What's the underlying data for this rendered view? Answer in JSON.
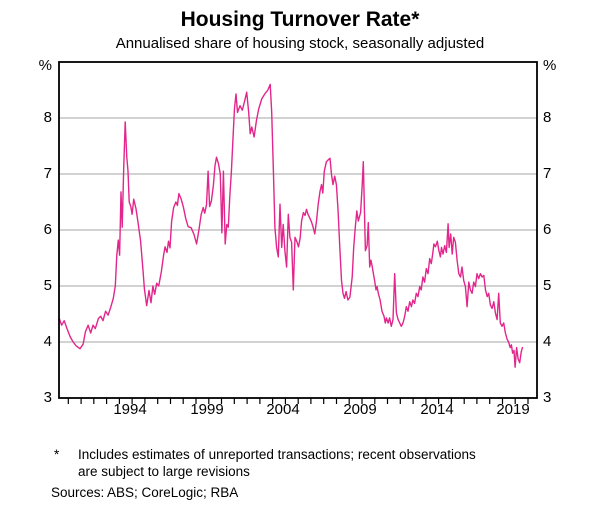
{
  "header": {
    "title": "Housing Turnover Rate*",
    "subtitle": "Annualised share of housing stock, seasonally adjusted"
  },
  "axes": {
    "unit_label": "%",
    "y_tick_labels": [
      "3",
      "4",
      "5",
      "6",
      "7",
      "8"
    ],
    "x_tick_labels": [
      "1994",
      "1999",
      "2004",
      "2009",
      "2014",
      "2019"
    ],
    "x_label_years": [
      1994,
      1999,
      2004,
      2009,
      2014,
      2019
    ]
  },
  "footnote": {
    "marker": "*",
    "lines": [
      "Includes estimates of unreported transactions; recent observations",
      "are subject to large revisions"
    ],
    "sources_label": "Sources:",
    "sources": "ABS; CoreLogic; RBA"
  },
  "colors": {
    "line": "#e2268b",
    "grid": "#a6a6a6",
    "frame": "#000000",
    "background": "#ffffff"
  },
  "chart_data": {
    "type": "line",
    "title": "Housing Turnover Rate*",
    "subtitle": "Annualised share of housing stock, seasonally adjusted",
    "ylabel": "%",
    "ylim": [
      3,
      9
    ],
    "xlim": [
      1989.38,
      2020.55
    ],
    "grid": "horizontal gridlines at 4,5,6,7,8",
    "legend": "none",
    "series": [
      {
        "name": "Housing turnover rate (annualised share of housing stock, seasonally adjusted, %)",
        "x": [
          1989.4,
          1989.55,
          1989.72,
          1989.9,
          1990.1,
          1990.3,
          1990.5,
          1990.75,
          1990.95,
          1991.1,
          1991.28,
          1991.45,
          1991.6,
          1991.75,
          1991.95,
          1992.1,
          1992.25,
          1992.42,
          1992.58,
          1992.75,
          1992.92,
          1993.05,
          1993.15,
          1993.25,
          1993.33,
          1993.42,
          1993.5,
          1993.6,
          1993.7,
          1993.8,
          1993.88,
          1993.96,
          1994.06,
          1994.15,
          1994.25,
          1994.4,
          1994.55,
          1994.7,
          1994.85,
          1994.95,
          1995.1,
          1995.25,
          1995.38,
          1995.5,
          1995.62,
          1995.75,
          1995.88,
          1996.05,
          1996.2,
          1996.3,
          1996.42,
          1996.52,
          1996.62,
          1996.72,
          1996.85,
          1997.0,
          1997.1,
          1997.2,
          1997.35,
          1997.5,
          1997.65,
          1997.8,
          1998.0,
          1998.18,
          1998.35,
          1998.5,
          1998.65,
          1998.78,
          1998.88,
          1999.0,
          1999.1,
          1999.2,
          1999.32,
          1999.45,
          1999.55,
          1999.65,
          1999.78,
          1999.9,
          2000.0,
          2000.1,
          2000.22,
          2000.32,
          2000.42,
          2000.52,
          2000.62,
          2000.72,
          2000.82,
          2000.92,
          2001.02,
          2001.18,
          2001.33,
          2001.48,
          2001.62,
          2001.75,
          2001.85,
          2001.95,
          2002.1,
          2002.25,
          2002.4,
          2002.6,
          2002.8,
          2003.0,
          2003.15,
          2003.25,
          2003.36,
          2003.46,
          2003.57,
          2003.68,
          2003.79,
          2003.9,
          2004.0,
          2004.11,
          2004.22,
          2004.33,
          2004.44,
          2004.55,
          2004.66,
          2004.77,
          2004.88,
          2005.0,
          2005.1,
          2005.2,
          2005.32,
          2005.42,
          2005.52,
          2005.62,
          2005.72,
          2005.85,
          2005.95,
          2006.06,
          2006.17,
          2006.28,
          2006.4,
          2006.5,
          2006.58,
          2006.68,
          2006.82,
          2006.97,
          2007.05,
          2007.15,
          2007.25,
          2007.36,
          2007.47,
          2007.58,
          2007.69,
          2007.8,
          2007.9,
          2008.0,
          2008.1,
          2008.22,
          2008.35,
          2008.5,
          2008.6,
          2008.7,
          2008.8,
          2008.9,
          2009.05,
          2009.15,
          2009.22,
          2009.36,
          2009.47,
          2009.55,
          2009.64,
          2009.72,
          2009.79,
          2009.88,
          2009.96,
          2010.05,
          2010.12,
          2010.2,
          2010.32,
          2010.44,
          2010.57,
          2010.66,
          2010.73,
          2010.84,
          2010.94,
          2011.05,
          2011.16,
          2011.27,
          2011.38,
          2011.49,
          2011.6,
          2011.7,
          2011.81,
          2011.92,
          2012.03,
          2012.14,
          2012.25,
          2012.36,
          2012.46,
          2012.57,
          2012.68,
          2012.79,
          2012.9,
          2013.0,
          2013.11,
          2013.22,
          2013.33,
          2013.44,
          2013.55,
          2013.66,
          2013.76,
          2013.83,
          2013.93,
          2014.05,
          2014.15,
          2014.25,
          2014.32,
          2014.42,
          2014.53,
          2014.64,
          2014.75,
          2014.82,
          2014.92,
          2015.02,
          2015.12,
          2015.23,
          2015.34,
          2015.45,
          2015.56,
          2015.66,
          2015.77,
          2015.88,
          2015.99,
          2016.1,
          2016.21,
          2016.32,
          2016.42,
          2016.53,
          2016.64,
          2016.75,
          2016.86,
          2016.97,
          2017.08,
          2017.19,
          2017.3,
          2017.4,
          2017.51,
          2017.62,
          2017.73,
          2017.84,
          2017.95,
          2018.05,
          2018.16,
          2018.27,
          2018.38,
          2018.49,
          2018.6,
          2018.7,
          2018.8,
          2018.88,
          2018.96,
          2019.05,
          2019.12,
          2019.22,
          2019.32,
          2019.42,
          2019.52,
          2019.6
        ],
        "y": [
          4.42,
          4.3,
          4.38,
          4.24,
          4.1,
          4.0,
          3.93,
          3.88,
          3.96,
          4.18,
          4.3,
          4.16,
          4.3,
          4.24,
          4.42,
          4.46,
          4.38,
          4.55,
          4.48,
          4.62,
          4.78,
          5.0,
          5.55,
          5.82,
          5.55,
          6.68,
          6.05,
          7.1,
          7.93,
          7.3,
          7.05,
          6.5,
          6.42,
          6.28,
          6.55,
          6.38,
          6.1,
          5.8,
          5.3,
          4.95,
          4.65,
          4.92,
          4.7,
          5.0,
          4.85,
          5.05,
          5.0,
          5.25,
          5.55,
          5.7,
          5.6,
          5.8,
          5.68,
          6.15,
          6.4,
          6.5,
          6.44,
          6.65,
          6.55,
          6.4,
          6.2,
          6.06,
          6.04,
          5.92,
          5.75,
          6.0,
          6.28,
          6.4,
          6.3,
          6.45,
          7.05,
          6.42,
          6.52,
          6.8,
          7.15,
          7.3,
          7.18,
          7.0,
          5.95,
          7.05,
          5.75,
          6.1,
          6.05,
          6.6,
          7.05,
          7.6,
          8.15,
          8.43,
          8.1,
          8.22,
          8.14,
          8.3,
          8.46,
          8.1,
          7.72,
          7.84,
          7.66,
          7.95,
          8.16,
          8.34,
          8.43,
          8.5,
          8.6,
          8.1,
          7.05,
          6.05,
          5.69,
          5.52,
          6.46,
          5.69,
          6.1,
          5.63,
          5.34,
          6.28,
          5.87,
          5.78,
          4.93,
          5.87,
          5.8,
          5.7,
          5.85,
          6.16,
          6.31,
          6.26,
          6.37,
          6.28,
          6.22,
          6.14,
          6.05,
          5.93,
          6.16,
          6.46,
          6.69,
          6.81,
          6.66,
          7.05,
          7.22,
          7.26,
          7.28,
          6.99,
          6.81,
          6.96,
          6.81,
          6.34,
          5.69,
          5.1,
          4.87,
          4.78,
          4.9,
          4.75,
          4.8,
          5.16,
          5.69,
          6.05,
          6.34,
          6.16,
          6.31,
          6.8,
          7.22,
          5.63,
          5.72,
          6.13,
          5.34,
          5.46,
          5.37,
          5.22,
          5.1,
          4.93,
          4.99,
          4.87,
          4.75,
          4.55,
          4.46,
          4.34,
          4.43,
          4.34,
          4.43,
          4.28,
          4.4,
          5.22,
          4.52,
          4.4,
          4.34,
          4.28,
          4.34,
          4.46,
          4.63,
          4.55,
          4.72,
          4.63,
          4.75,
          4.69,
          4.87,
          4.81,
          4.99,
          4.93,
          5.16,
          5.07,
          5.31,
          5.22,
          5.49,
          5.4,
          5.6,
          5.75,
          5.7,
          5.8,
          5.63,
          5.52,
          5.69,
          5.57,
          5.72,
          5.6,
          6.11,
          5.69,
          5.93,
          5.57,
          5.87,
          5.78,
          5.46,
          5.22,
          5.16,
          5.34,
          5.1,
          4.99,
          4.63,
          5.07,
          4.93,
          4.87,
          5.07,
          4.99,
          5.22,
          5.13,
          5.22,
          5.16,
          5.19,
          4.93,
          4.81,
          4.87,
          4.66,
          4.6,
          4.72,
          4.52,
          4.4,
          4.87,
          4.34,
          4.28,
          4.34,
          4.16,
          4.05,
          4.0,
          3.9,
          3.95,
          3.8,
          3.85,
          3.55,
          3.9,
          3.7,
          3.63,
          3.82,
          3.9
        ]
      }
    ]
  }
}
